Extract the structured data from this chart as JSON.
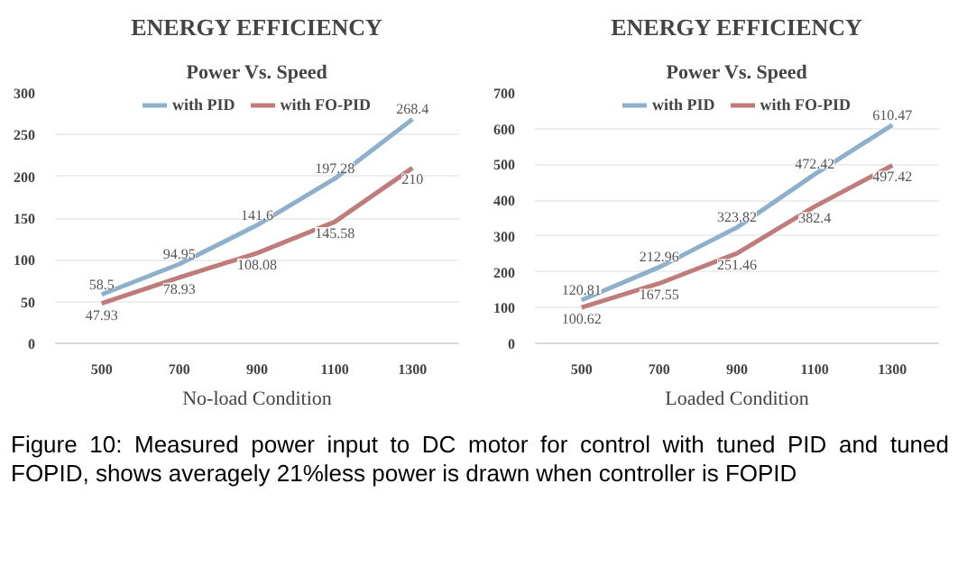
{
  "chart_data": [
    {
      "type": "line",
      "title": "ENERGY EFFICIENCY",
      "subtitle": "Power Vs. Speed",
      "xlabel": "No-load Condition",
      "categories": [
        "500",
        "700",
        "900",
        "1100",
        "1300"
      ],
      "series": [
        {
          "name": "with PID",
          "color": "#8eb0cc",
          "values": [
            58.5,
            94.95,
            141.6,
            197.28,
            268.4
          ]
        },
        {
          "name": "with FO-PID",
          "color": "#c07b7b",
          "values": [
            47.93,
            78.93,
            108.08,
            145.58,
            210
          ]
        }
      ],
      "ylim": [
        0,
        300
      ],
      "yticks": [
        0,
        50,
        100,
        150,
        200,
        250,
        300
      ],
      "grid": "y",
      "legend": "top",
      "data_labels": true
    },
    {
      "type": "line",
      "title": "ENERGY EFFICIENCY",
      "subtitle": "Power Vs. Speed",
      "xlabel": "Loaded Condition",
      "categories": [
        "500",
        "700",
        "900",
        "1100",
        "1300"
      ],
      "series": [
        {
          "name": "with PID",
          "color": "#8eb0cc",
          "values": [
            120.81,
            212.96,
            323.82,
            472.42,
            610.47
          ]
        },
        {
          "name": "with FO-PID",
          "color": "#c07b7b",
          "values": [
            100.62,
            167.55,
            251.46,
            382.4,
            497.42
          ]
        }
      ],
      "ylim": [
        0,
        700
      ],
      "yticks": [
        0,
        100,
        200,
        300,
        400,
        500,
        600,
        700
      ],
      "grid": "y",
      "legend": "top",
      "data_labels": true,
      "annotations": [
        "Figure 10: Measured power input to DC motor for control with tuned PID and tuned FOPID, shows averagely 21%less power is drawn when controller is FOPID"
      ]
    }
  ]
}
